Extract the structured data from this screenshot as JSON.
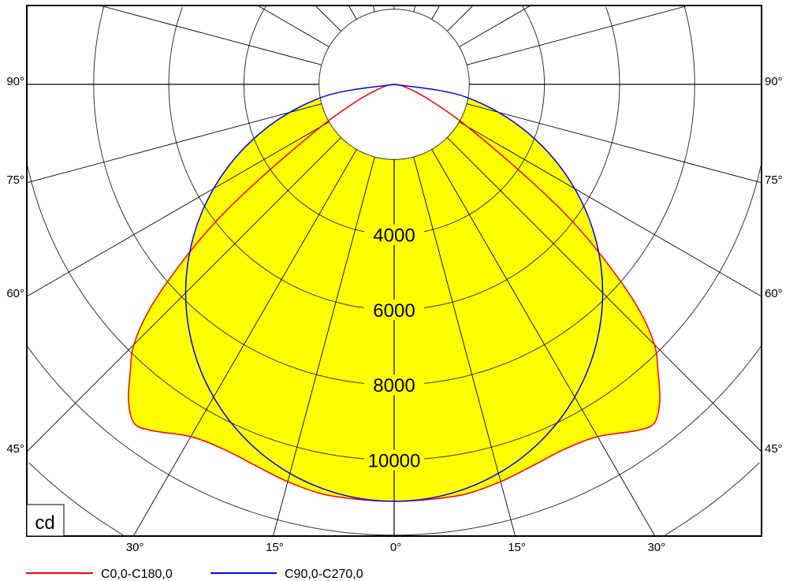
{
  "chart_data": {
    "type": "polar",
    "unit_label": "cd",
    "ring_step": 2000,
    "ring_labels": [
      "4000",
      "6000",
      "8000",
      "10000"
    ],
    "ring_label_values": [
      4000,
      6000,
      8000,
      10000
    ],
    "angle_grid_step_deg": 15,
    "side_angle_labels": [
      "90°",
      "75°",
      "60°",
      "45°"
    ],
    "side_angle_values": [
      90,
      75,
      60,
      45
    ],
    "bottom_angle_labels": [
      "30°",
      "15°",
      "0°",
      "15°",
      "30°"
    ],
    "bottom_angle_values": [
      -30,
      -15,
      0,
      15,
      30
    ],
    "fill_color": "#ffff00",
    "series": [
      {
        "name": "C0,0-C180,0",
        "color": "#ff0000",
        "angles_deg": [
          0,
          5,
          10,
          15,
          20,
          25,
          30,
          35,
          37.5,
          40,
          42.5,
          45,
          47.5,
          50,
          52.5,
          55,
          60,
          65,
          70,
          80,
          90
        ],
        "intensity_cd": [
          11100,
          11090,
          11070,
          10950,
          10800,
          10720,
          10830,
          11250,
          11370,
          11000,
          10400,
          9800,
          8800,
          7400,
          5950,
          4300,
          2250,
          1200,
          650,
          200,
          0
        ]
      },
      {
        "name": "C90,0-C270,0",
        "color": "#0000ff",
        "angles_deg": [
          0,
          10,
          20,
          30,
          40,
          50,
          60,
          70,
          80,
          90
        ],
        "intensity_cd": [
          11100,
          10931,
          10431,
          9613,
          8503,
          7135,
          5550,
          3796,
          1928,
          0
        ]
      }
    ]
  }
}
